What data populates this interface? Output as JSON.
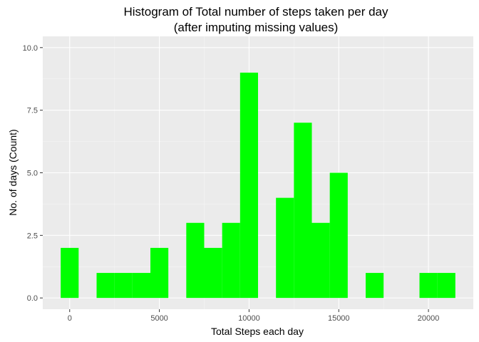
{
  "chart_data": {
    "type": "bar",
    "title": "Histogram of Total number of steps taken per day",
    "subtitle": "(after imputing missing values)",
    "xlabel": "Total Steps each day",
    "ylabel": "No. of days (Count)",
    "bin_width": 1000,
    "x": [
      0,
      1000,
      2000,
      3000,
      4000,
      5000,
      6000,
      7000,
      8000,
      9000,
      10000,
      11000,
      12000,
      13000,
      14000,
      15000,
      16000,
      17000,
      18000,
      19000,
      20000,
      21000
    ],
    "values": [
      2,
      0,
      1,
      1,
      1,
      2,
      0,
      3,
      2,
      3,
      9,
      0,
      4,
      7,
      3,
      5,
      0,
      1,
      0,
      0,
      1,
      1
    ],
    "xlim": [
      -1500,
      22500
    ],
    "ylim": [
      -0.45,
      10.45
    ],
    "x_ticks": [
      0,
      5000,
      10000,
      15000,
      20000
    ],
    "x_tick_labels": [
      "0",
      "5000",
      "10000",
      "15000",
      "20000"
    ],
    "y_ticks": [
      0,
      2.5,
      5,
      7.5,
      10
    ],
    "y_tick_labels": [
      "0.0",
      "2.5",
      "5.0",
      "7.5",
      "10.0"
    ],
    "grid": true,
    "colors": {
      "bar": "#00ff00",
      "panel": "#ebebeb",
      "grid_major": "#ffffff",
      "grid_minor": "#f5f5f5",
      "tick": "#333333",
      "tick_text": "#4d4d4d"
    }
  }
}
